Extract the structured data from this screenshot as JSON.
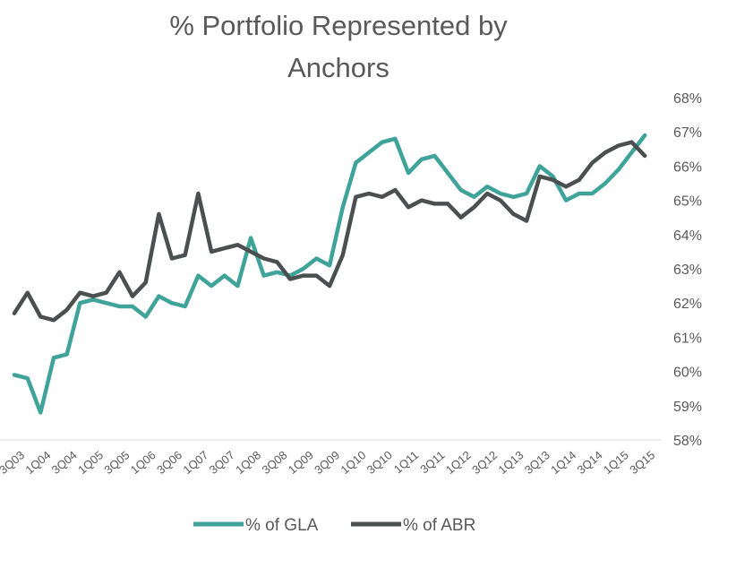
{
  "chart_data": {
    "type": "line",
    "title_lines": [
      "% Portfolio Represented by",
      "Anchors"
    ],
    "xlabel": "",
    "ylabel": "",
    "ylim": [
      58,
      68
    ],
    "y_ticks": [
      "58%",
      "59%",
      "60%",
      "61%",
      "62%",
      "63%",
      "64%",
      "65%",
      "66%",
      "67%",
      "68%"
    ],
    "x": [
      "3Q03",
      "4Q03",
      "1Q04",
      "2Q04",
      "3Q04",
      "4Q04",
      "1Q05",
      "2Q05",
      "3Q05",
      "4Q05",
      "1Q06",
      "2Q06",
      "3Q06",
      "4Q06",
      "1Q07",
      "2Q07",
      "3Q07",
      "4Q07",
      "1Q08",
      "2Q08",
      "3Q08",
      "4Q08",
      "1Q09",
      "2Q09",
      "3Q09",
      "4Q09",
      "1Q10",
      "2Q10",
      "3Q10",
      "4Q10",
      "1Q11",
      "2Q11",
      "3Q11",
      "4Q11",
      "1Q12",
      "2Q12",
      "3Q12",
      "4Q12",
      "1Q13",
      "2Q13",
      "3Q13",
      "4Q13",
      "1Q14",
      "2Q14",
      "3Q14",
      "4Q14",
      "1Q15",
      "2Q15",
      "3Q15"
    ],
    "x_tick_labels": [
      "3Q03",
      "1Q04",
      "3Q04",
      "1Q05",
      "3Q05",
      "1Q06",
      "3Q06",
      "1Q07",
      "3Q07",
      "1Q08",
      "3Q08",
      "1Q09",
      "3Q09",
      "1Q10",
      "3Q10",
      "1Q11",
      "3Q11",
      "1Q12",
      "3Q12",
      "1Q13",
      "3Q13",
      "1Q14",
      "3Q14",
      "1Q15",
      "3Q15"
    ],
    "series": [
      {
        "name": "% of GLA",
        "color": "#3fa39a",
        "values": [
          59.9,
          59.8,
          58.8,
          60.4,
          60.5,
          62.0,
          62.1,
          62.0,
          61.9,
          61.9,
          61.6,
          62.2,
          62.0,
          61.9,
          62.8,
          62.5,
          62.8,
          62.5,
          63.9,
          62.8,
          62.9,
          62.8,
          63.0,
          63.3,
          63.1,
          64.8,
          66.1,
          66.4,
          66.7,
          66.8,
          65.8,
          66.2,
          66.3,
          65.8,
          65.3,
          65.1,
          65.4,
          65.2,
          65.1,
          65.2,
          66.0,
          65.7,
          65.0,
          65.2,
          65.2,
          65.5,
          65.9,
          66.4,
          66.9
        ]
      },
      {
        "name": "% of ABR",
        "color": "#4b4f4f",
        "values": [
          61.7,
          62.3,
          61.6,
          61.5,
          61.8,
          62.3,
          62.2,
          62.3,
          62.9,
          62.2,
          62.6,
          64.6,
          63.3,
          63.4,
          65.2,
          63.5,
          63.6,
          63.7,
          63.5,
          63.3,
          63.2,
          62.7,
          62.8,
          62.8,
          62.5,
          63.4,
          65.1,
          65.2,
          65.1,
          65.3,
          64.8,
          65.0,
          64.9,
          64.9,
          64.5,
          64.8,
          65.2,
          65.0,
          64.6,
          64.4,
          65.7,
          65.6,
          65.4,
          65.6,
          66.1,
          66.4,
          66.6,
          66.7,
          66.3
        ]
      }
    ],
    "grid": false,
    "legend_position": "bottom"
  }
}
